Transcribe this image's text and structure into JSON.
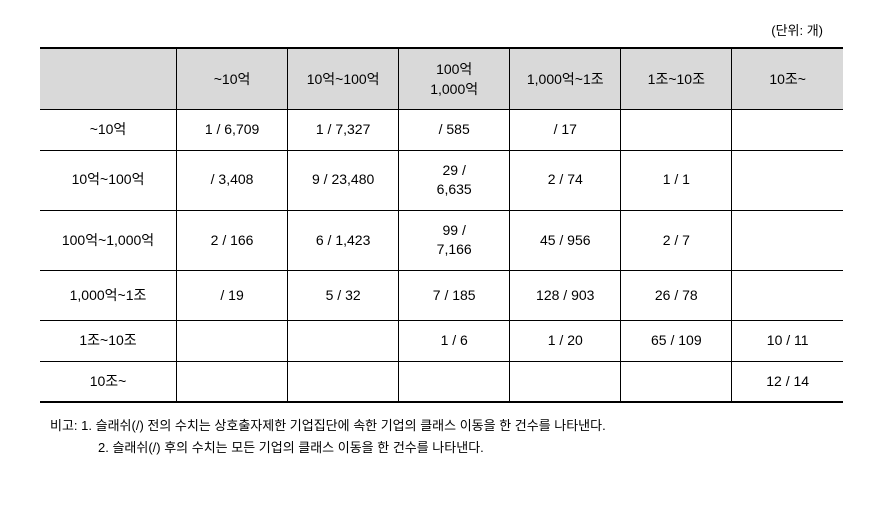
{
  "unit_label": "(단위: 개)",
  "table": {
    "columns": [
      "",
      "~10억",
      "10억~100억",
      "100억\n1,000억",
      "1,000억~1조",
      "1조~10조",
      "10조~"
    ],
    "rows": [
      {
        "label": "~10억",
        "cells": [
          "1 / 6,709",
          "1 / 7,327",
          "/ 585",
          "/ 17",
          "",
          ""
        ],
        "tall": false
      },
      {
        "label": "10억~100억",
        "cells": [
          "/ 3,408",
          "9 / 23,480",
          "29 /\n6,635",
          "2 / 74",
          "1 / 1",
          ""
        ],
        "tall": true
      },
      {
        "label": "100억~1,000억",
        "cells": [
          "2 / 166",
          "6 / 1,423",
          "99 /\n7,166",
          "45 / 956",
          "2 / 7",
          ""
        ],
        "tall": true
      },
      {
        "label": "1,000억~1조",
        "cells": [
          "/ 19",
          "5 / 32",
          "7 / 185",
          "128 / 903",
          "26 / 78",
          ""
        ],
        "tall": true
      },
      {
        "label": "1조~10조",
        "cells": [
          "",
          "",
          "1 / 6",
          "1 / 20",
          "65 / 109",
          "10 / 11"
        ],
        "tall": false
      },
      {
        "label": "10조~",
        "cells": [
          "",
          "",
          "",
          "",
          "",
          "12 / 14"
        ],
        "tall": false
      }
    ]
  },
  "notes": {
    "prefix": "비고:",
    "items": [
      "1. 슬래쉬(/) 전의 수치는 상호출자제한 기업집단에 속한 기업의 클래스 이동을 한 건수를 나타낸다.",
      "2. 슬래쉬(/) 후의 수치는 모든 기업의 클래스 이동을 한 건수를 나타낸다."
    ]
  },
  "styling": {
    "header_bg": "#d9d9d9",
    "border_color": "#000000",
    "font_family": "Malgun Gothic",
    "body_fontsize": 14,
    "notes_fontsize": 13
  }
}
